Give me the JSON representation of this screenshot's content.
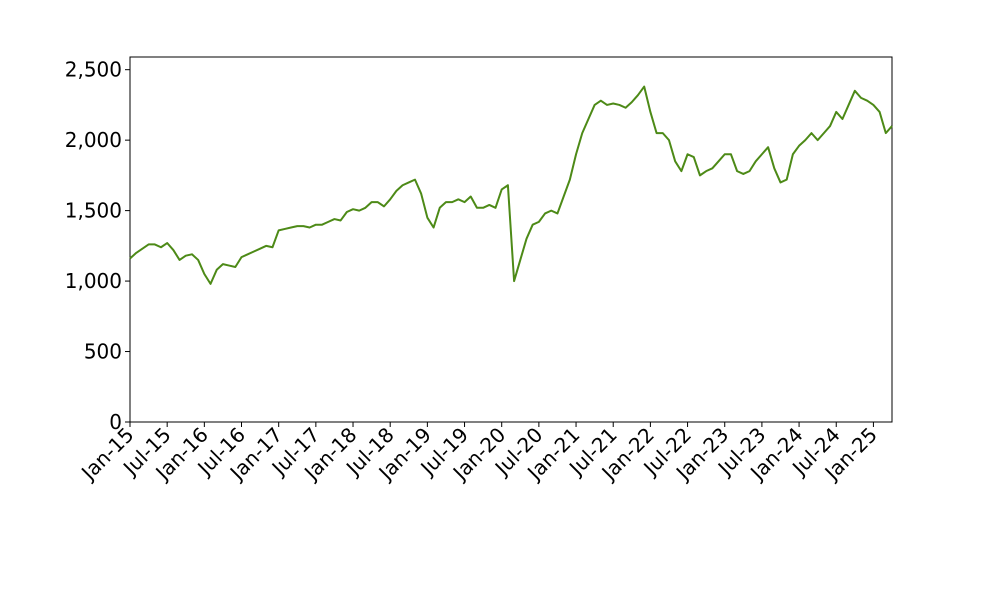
{
  "chart_data": {
    "type": "line",
    "x": [
      "2015-01",
      "2015-02",
      "2015-03",
      "2015-04",
      "2015-05",
      "2015-06",
      "2015-07",
      "2015-08",
      "2015-09",
      "2015-10",
      "2015-11",
      "2015-12",
      "2016-01",
      "2016-02",
      "2016-03",
      "2016-04",
      "2016-05",
      "2016-06",
      "2016-07",
      "2016-08",
      "2016-09",
      "2016-10",
      "2016-11",
      "2016-12",
      "2017-01",
      "2017-02",
      "2017-03",
      "2017-04",
      "2017-05",
      "2017-06",
      "2017-07",
      "2017-08",
      "2017-09",
      "2017-10",
      "2017-11",
      "2017-12",
      "2018-01",
      "2018-02",
      "2018-03",
      "2018-04",
      "2018-05",
      "2018-06",
      "2018-07",
      "2018-08",
      "2018-09",
      "2018-10",
      "2018-11",
      "2018-12",
      "2019-01",
      "2019-02",
      "2019-03",
      "2019-04",
      "2019-05",
      "2019-06",
      "2019-07",
      "2019-08",
      "2019-09",
      "2019-10",
      "2019-11",
      "2019-12",
      "2020-01",
      "2020-02",
      "2020-03",
      "2020-04",
      "2020-05",
      "2020-06",
      "2020-07",
      "2020-08",
      "2020-09",
      "2020-10",
      "2020-11",
      "2020-12",
      "2021-01",
      "2021-02",
      "2021-03",
      "2021-04",
      "2021-05",
      "2021-06",
      "2021-07",
      "2021-08",
      "2021-09",
      "2021-10",
      "2021-11",
      "2021-12",
      "2022-01",
      "2022-02",
      "2022-03",
      "2022-04",
      "2022-05",
      "2022-06",
      "2022-07",
      "2022-08",
      "2022-09",
      "2022-10",
      "2022-11",
      "2022-12",
      "2023-01",
      "2023-02",
      "2023-03",
      "2023-04",
      "2023-05",
      "2023-06",
      "2023-07",
      "2023-08",
      "2023-09",
      "2023-10",
      "2023-11",
      "2023-12",
      "2024-01",
      "2024-02",
      "2024-03",
      "2024-04",
      "2024-05",
      "2024-06",
      "2024-07",
      "2024-08",
      "2024-09",
      "2024-10",
      "2024-11",
      "2024-12",
      "2025-01",
      "2025-02",
      "2025-03",
      "2025-04"
    ],
    "series": [
      {
        "color": "#4d8a17",
        "values": [
          1160,
          1200,
          1230,
          1260,
          1260,
          1240,
          1270,
          1220,
          1150,
          1180,
          1190,
          1150,
          1050,
          980,
          1080,
          1120,
          1110,
          1100,
          1170,
          1190,
          1210,
          1230,
          1250,
          1240,
          1360,
          1370,
          1380,
          1390,
          1390,
          1380,
          1400,
          1400,
          1420,
          1440,
          1430,
          1490,
          1510,
          1500,
          1520,
          1560,
          1560,
          1530,
          1580,
          1640,
          1680,
          1700,
          1720,
          1620,
          1450,
          1380,
          1520,
          1560,
          1560,
          1580,
          1560,
          1600,
          1520,
          1520,
          1540,
          1520,
          1650,
          1680,
          1000,
          1150,
          1300,
          1400,
          1420,
          1480,
          1500,
          1480,
          1600,
          1720,
          1900,
          2050,
          2150,
          2250,
          2280,
          2250,
          2260,
          2250,
          2230,
          2270,
          2320,
          2380,
          2200,
          2050,
          2050,
          2000,
          1850,
          1780,
          1900,
          1880,
          1750,
          1780,
          1800,
          1850,
          1900,
          1900,
          1780,
          1760,
          1780,
          1850,
          1900,
          1950,
          1800,
          1700,
          1720,
          1900,
          1960,
          2000,
          2050,
          2000,
          2050,
          2100,
          2200,
          2150,
          2250,
          2350,
          2300,
          2280,
          2250,
          2200,
          2050,
          2100
        ]
      }
    ],
    "xlim": [
      "2015-01",
      "2025-04"
    ],
    "xticks": [
      {
        "value": "2015-01",
        "label": "Jan-15"
      },
      {
        "value": "2015-07",
        "label": "Jul-15"
      },
      {
        "value": "2016-01",
        "label": "Jan-16"
      },
      {
        "value": "2016-07",
        "label": "Jul-16"
      },
      {
        "value": "2017-01",
        "label": "Jan-17"
      },
      {
        "value": "2017-07",
        "label": "Jul-17"
      },
      {
        "value": "2018-01",
        "label": "Jan-18"
      },
      {
        "value": "2018-07",
        "label": "Jul-18"
      },
      {
        "value": "2019-01",
        "label": "Jan-19"
      },
      {
        "value": "2019-07",
        "label": "Jul-19"
      },
      {
        "value": "2020-01",
        "label": "Jan-20"
      },
      {
        "value": "2020-07",
        "label": "Jul-20"
      },
      {
        "value": "2021-01",
        "label": "Jan-21"
      },
      {
        "value": "2021-07",
        "label": "Jul-21"
      },
      {
        "value": "2022-01",
        "label": "Jan-22"
      },
      {
        "value": "2022-07",
        "label": "Jul-22"
      },
      {
        "value": "2023-01",
        "label": "Jan-23"
      },
      {
        "value": "2023-07",
        "label": "Jul-23"
      },
      {
        "value": "2024-01",
        "label": "Jan-24"
      },
      {
        "value": "2024-07",
        "label": "Jul-24"
      },
      {
        "value": "2025-01",
        "label": "Jan-25"
      }
    ],
    "ylim": [
      0,
      2590
    ],
    "yticks": [
      0,
      500,
      {
        "value": 1000,
        "label": "1,000"
      },
      {
        "value": 1500,
        "label": "1,500"
      },
      {
        "value": 2000,
        "label": "2,000"
      },
      {
        "value": 2500,
        "label": "2,500"
      }
    ],
    "grid": false
  }
}
